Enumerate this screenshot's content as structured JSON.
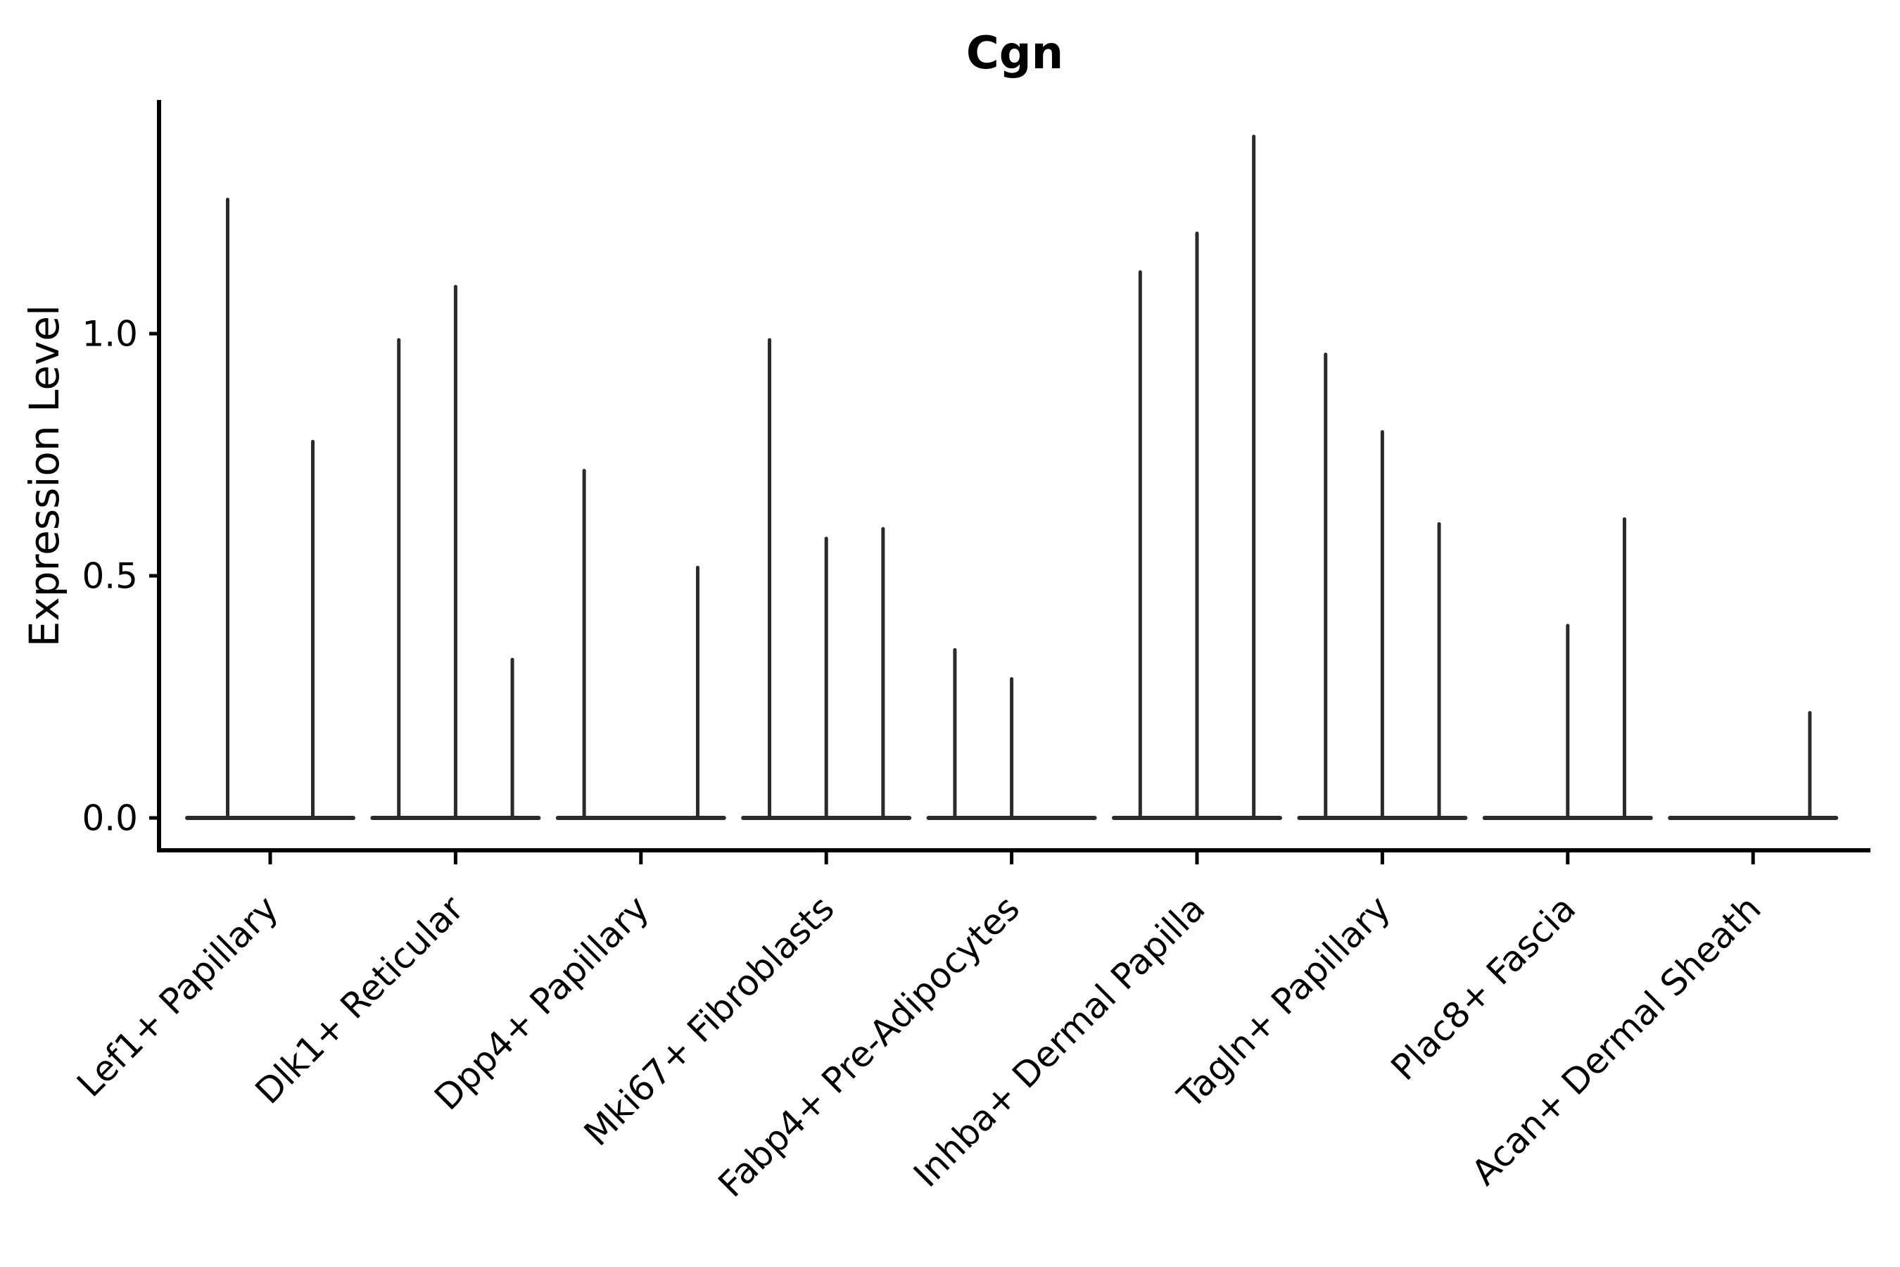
{
  "chart_data": {
    "type": "violin",
    "title": "Cgn",
    "xlabel": "",
    "ylabel": "Expression Level",
    "yticks": [
      {
        "value": 0.0,
        "label": "0.0"
      },
      {
        "value": 0.5,
        "label": "0.5"
      },
      {
        "value": 1.0,
        "label": "1.0"
      }
    ],
    "ylim": [
      -0.07,
      1.48
    ],
    "grid": false,
    "legend": "none",
    "style_note": "Each category shows narrow violins: a flat dark base at expression 0 with thin vertical tails; tail tip = max expression value; 0 means flat violin with no tail.",
    "categories": [
      {
        "label": "Lef1+ Papillary",
        "violin_max_values": [
          1.28,
          0.78
        ]
      },
      {
        "label": "Dlk1+ Reticular",
        "violin_max_values": [
          0.99,
          1.1,
          0.33
        ]
      },
      {
        "label": "Dpp4+ Papillary",
        "violin_max_values": [
          0.72,
          0.0,
          0.52
        ]
      },
      {
        "label": "Mki67+ Fibroblasts",
        "violin_max_values": [
          0.99,
          0.58,
          0.6
        ]
      },
      {
        "label": "Fabp4+ Pre-Adipocytes",
        "violin_max_values": [
          0.35,
          0.29,
          0.0
        ]
      },
      {
        "label": "Inhba+ Dermal Papilla",
        "violin_max_values": [
          1.13,
          1.21,
          1.41
        ]
      },
      {
        "label": "Tagln+ Papillary",
        "violin_max_values": [
          0.96,
          0.8,
          0.61
        ]
      },
      {
        "label": "Plac8+ Fascia",
        "violin_max_values": [
          0.0,
          0.4,
          0.62
        ]
      },
      {
        "label": "Acan+ Dermal Sheath",
        "violin_max_values": [
          0.0,
          0.0,
          0.22
        ]
      }
    ],
    "colors": {
      "violin": "#2a2a2a",
      "axis": "#000000",
      "text": "#000000",
      "background": "#ffffff"
    }
  }
}
